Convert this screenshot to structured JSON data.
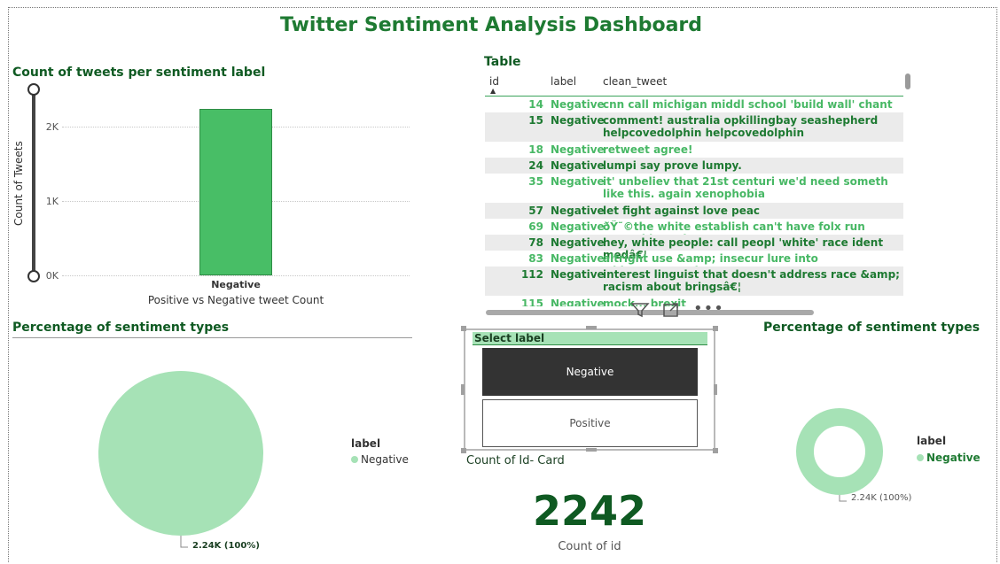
{
  "dashboard": {
    "title": "Twitter Sentiment Analysis Dashboard"
  },
  "bar_chart": {
    "title": "Count of tweets per sentiment label",
    "ylabel": "Count of Tweets",
    "xlabel": "Positive vs Negative tweet Count",
    "ticks": [
      "2K",
      "1K",
      "0K"
    ],
    "slider_range": [
      0,
      2242
    ]
  },
  "table": {
    "title": "Table",
    "headers": {
      "id": "id",
      "label": "label",
      "clean_tweet": "clean_tweet"
    },
    "rows": [
      {
        "id": "14",
        "label": "Negative",
        "tweet": "cnn call michigan middl school 'build wall' chant tcot"
      },
      {
        "id": "15",
        "label": "Negative",
        "tweet": "comment! australia opkillingbay seashepherd helpcovedolphin helpcovedolphin"
      },
      {
        "id": "18",
        "label": "Negative",
        "tweet": "retweet agree!"
      },
      {
        "id": "24",
        "label": "Negative",
        "tweet": "lumpi say prove lumpy."
      },
      {
        "id": "35",
        "label": "Negative",
        "tweet": "it' unbeliev that 21st centuri we'd need someth like this. again xenophobia"
      },
      {
        "id": "57",
        "label": "Negative",
        "tweet": "let fight against love peac"
      },
      {
        "id": "69",
        "label": "Negative",
        "tweet": "ðŸ˜©the white establish can't have folx run around love thems"
      },
      {
        "id": "78",
        "label": "Negative",
        "tweet": "hey, white people: call peopl 'white' race ident medâ€¦"
      },
      {
        "id": "83",
        "label": "Negative",
        "tweet": "altright use &amp; insecur lure into whitesupremaci"
      },
      {
        "id": "112",
        "label": "Negative",
        "tweet": "interest linguist that doesn't address race &amp; racism about bringsâ€¦"
      },
      {
        "id": "115",
        "label": "Negative",
        "tweet": "mock... brexit"
      }
    ]
  },
  "slicer": {
    "title": "Select label",
    "options": [
      "Negative",
      "Positive"
    ],
    "selected": "Negative"
  },
  "card": {
    "title": "Count of Id- Card",
    "value": "2242",
    "label": "Count of id"
  },
  "pie": {
    "title": "Percentage of sentiment types",
    "legend_title": "label",
    "legend_item": "Negative",
    "data_label": "2.24K (100%)"
  },
  "donut": {
    "title": "Percentage of sentiment types",
    "legend_title": "label",
    "legend_item": "Negative",
    "data_label": "2.24K (100%)"
  },
  "chart_data": [
    {
      "type": "bar",
      "title": "Count of tweets per sentiment label",
      "categories": [
        "Negative"
      ],
      "values": [
        2242
      ],
      "xlabel": "Positive vs Negative tweet Count",
      "ylabel": "Count of Tweets",
      "ylim": [
        0,
        2500
      ]
    },
    {
      "type": "pie",
      "title": "Percentage of sentiment types",
      "categories": [
        "Negative"
      ],
      "values": [
        2242
      ],
      "labels": [
        "2.24K (100%)"
      ]
    },
    {
      "type": "pie",
      "title": "Percentage of sentiment types",
      "categories": [
        "Negative"
      ],
      "values": [
        2242
      ],
      "labels": [
        "2.24K (100%)"
      ]
    }
  ],
  "colors": {
    "title_green": "#1e7a32",
    "bar_green": "#48be66",
    "pie_green": "#a6e2b6",
    "slicer_selected": "#333333"
  }
}
